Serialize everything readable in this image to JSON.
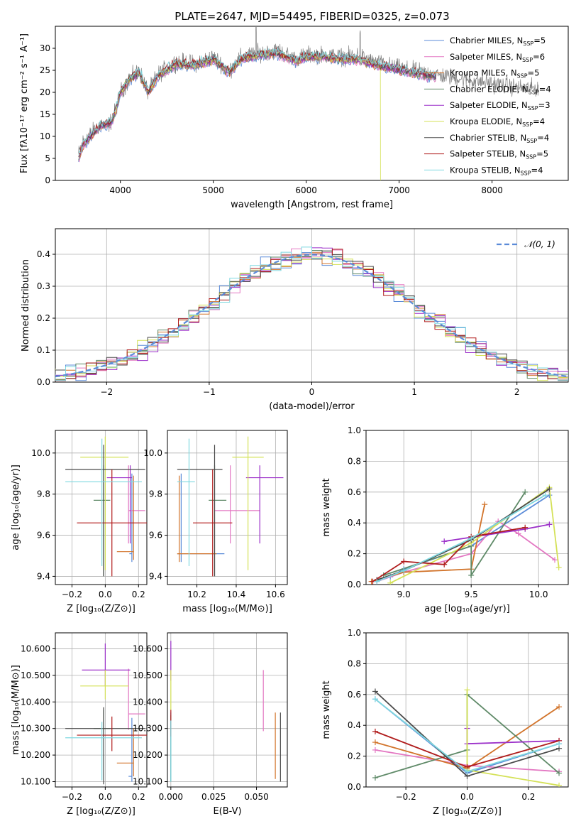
{
  "figure_title": "PLATE=2647, MJD=54495, FIBERID=0325, z=0.073",
  "models": [
    {
      "name": "Chabrier MILES, N$_{SSP}$=5",
      "label": "Chabrier MILES, N",
      "nssp": "=5",
      "color": "#5b8bd8"
    },
    {
      "name": "Salpeter MILES, N$_{SSP}$=6",
      "label": "Salpeter MILES, N",
      "nssp": "=6",
      "color": "#e377c2"
    },
    {
      "name": "Kroupa MILES, N$_{SSP}$=5",
      "label": "Kroupa MILES, N",
      "nssp": "=5",
      "color": "#d2742b"
    },
    {
      "name": "Chabrier ELODIE, N$_{SSP}$=4",
      "label": "Chabrier ELODIE, N",
      "nssp": "=4",
      "color": "#5f8a68"
    },
    {
      "name": "Salpeter ELODIE, N$_{SSP}$=3",
      "label": "Salpeter ELODIE, N",
      "nssp": "=3",
      "color": "#9b2fc9"
    },
    {
      "name": "Kroupa ELODIE, N$_{SSP}$=4",
      "label": "Kroupa ELODIE, N",
      "nssp": "=4",
      "color": "#d4e157"
    },
    {
      "name": "Chabrier STELIB, N$_{SSP}$=4",
      "label": "Chabrier STELIB, N",
      "nssp": "=4",
      "color": "#4a4a4a"
    },
    {
      "name": "Salpeter STELIB, N$_{SSP}$=5",
      "label": "Salpeter STELIB, N",
      "nssp": "=5",
      "color": "#b01c1c"
    },
    {
      "name": "Kroupa STELIB, N$_{SSP}$=4",
      "label": "Kroupa STELIB, N",
      "nssp": "=4",
      "color": "#7fd8e0"
    }
  ],
  "legend_subscript": "SSP",
  "chart_data": [
    {
      "id": "spectrum",
      "type": "line",
      "xlabel": "wavelength [Angstrom, rest frame]",
      "ylabel": "Flux [fλ10⁻¹⁷ erg cm⁻² s⁻¹ A⁻¹]",
      "xlim": [
        3300,
        8820
      ],
      "ylim": [
        0,
        35
      ],
      "xticks": [
        4000,
        5000,
        6000,
        7000,
        8000
      ],
      "yticks": [
        0,
        5,
        10,
        15,
        20,
        25,
        30
      ],
      "legend": "top-right",
      "data_color": "#808080",
      "data_anchors": [
        [
          3550,
          6
        ],
        [
          3600,
          9
        ],
        [
          3700,
          11
        ],
        [
          3800,
          13
        ],
        [
          3850,
          12
        ],
        [
          3900,
          13.5
        ],
        [
          3950,
          16
        ],
        [
          4000,
          20
        ],
        [
          4100,
          23
        ],
        [
          4200,
          25
        ],
        [
          4300,
          20
        ],
        [
          4400,
          24
        ],
        [
          4600,
          27
        ],
        [
          4800,
          26.5
        ],
        [
          5000,
          28
        ],
        [
          5175,
          25
        ],
        [
          5300,
          28
        ],
        [
          5500,
          29
        ],
        [
          5700,
          29.5
        ],
        [
          5890,
          27.5
        ],
        [
          6000,
          28.5
        ],
        [
          6200,
          28.5
        ],
        [
          6400,
          28
        ],
        [
          6563,
          28.5
        ],
        [
          6700,
          27
        ],
        [
          7000,
          25.5
        ],
        [
          7400,
          24
        ],
        [
          7700,
          23
        ],
        [
          8000,
          22
        ],
        [
          8300,
          21
        ],
        [
          8500,
          21
        ]
      ],
      "model_anchors": [
        [
          3550,
          5
        ],
        [
          3600,
          8
        ],
        [
          3700,
          10.5
        ],
        [
          3800,
          12.5
        ],
        [
          3900,
          13
        ],
        [
          3950,
          16
        ],
        [
          4000,
          20
        ],
        [
          4100,
          23
        ],
        [
          4200,
          24.5
        ],
        [
          4300,
          20
        ],
        [
          4400,
          23.5
        ],
        [
          4600,
          26.5
        ],
        [
          4800,
          26
        ],
        [
          5000,
          27.5
        ],
        [
          5175,
          24.5
        ],
        [
          5300,
          27.5
        ],
        [
          5500,
          28.5
        ],
        [
          5700,
          28.8
        ],
        [
          5890,
          27
        ],
        [
          6000,
          28
        ],
        [
          6200,
          28
        ],
        [
          6400,
          27.5
        ],
        [
          6563,
          27.5
        ],
        [
          6700,
          26.5
        ],
        [
          7000,
          25
        ],
        [
          7400,
          23.5
        ]
      ]
    },
    {
      "id": "residuals",
      "type": "step",
      "xlabel": "(data-model)/error",
      "ylabel": "Normed distribution",
      "xlim": [
        -2.5,
        2.5
      ],
      "ylim": [
        0,
        0.48
      ],
      "xticks": [
        -2,
        -1,
        0,
        1,
        2
      ],
      "yticks": [
        0.0,
        0.1,
        0.2,
        0.3,
        0.4
      ],
      "grid": true,
      "legend": "top-right",
      "reference_curve": "𝒩(0, 1)",
      "bin_width": 0.1
    },
    {
      "id": "age_vs_Z",
      "type": "errorbar",
      "xlabel": "Z [log₁₀(Z/Z⊙)]",
      "ylabel": "age  [log₁₀(age/yr)]",
      "xlim": [
        -0.3,
        0.25
      ],
      "ylim": [
        9.36,
        10.11
      ],
      "xticks": [
        -0.2,
        0.0,
        0.2
      ],
      "yticks": [
        9.4,
        9.6,
        9.8,
        10.0
      ],
      "grid": true,
      "points": [
        {
          "model": 0,
          "x": 0.16,
          "xerr": [
            0.015,
            0.0
          ],
          "y": 9.51,
          "yerr": [
            0.04,
            0.39
          ]
        },
        {
          "model": 1,
          "x": 0.14,
          "xerr": [
            0.0,
            0.1
          ],
          "y": 9.72,
          "yerr": [
            0.16,
            0.22
          ]
        },
        {
          "model": 2,
          "x": 0.17,
          "xerr": [
            0.1,
            0.0
          ],
          "y": 9.52,
          "yerr": [
            0.04,
            0.37
          ]
        },
        {
          "model": 3,
          "x": -0.01,
          "xerr": [
            0.06,
            0.04
          ],
          "y": 9.77,
          "yerr": [
            0.37,
            0.17
          ]
        },
        {
          "model": 4,
          "x": 0.15,
          "xerr": [
            0.14,
            0.01
          ],
          "y": 9.88,
          "yerr": [
            0.32,
            0.06
          ]
        },
        {
          "model": 5,
          "x": 0.0,
          "xerr": [
            0.15,
            0.14
          ],
          "y": 9.98,
          "yerr": [
            0.55,
            0.1
          ]
        },
        {
          "model": 6,
          "x": -0.01,
          "xerr": [
            0.23,
            0.25
          ],
          "y": 9.92,
          "yerr": [
            0.52,
            0.12
          ]
        },
        {
          "model": 7,
          "x": 0.04,
          "xerr": [
            0.21,
            0.23
          ],
          "y": 9.66,
          "yerr": [
            0.26,
            0.26
          ]
        },
        {
          "model": 8,
          "x": -0.02,
          "xerr": [
            0.22,
            0.24
          ],
          "y": 9.86,
          "yerr": [
            0.41,
            0.21
          ]
        }
      ]
    },
    {
      "id": "age_vs_mass",
      "type": "errorbar",
      "xlabel": "mass [log₁₀(M/M⊙)]",
      "ylabel": "",
      "xlim": [
        10.05,
        10.66
      ],
      "ylim": [
        9.36,
        10.11
      ],
      "xticks": [
        10.2,
        10.4,
        10.6
      ],
      "yticks": [
        9.4,
        9.6,
        9.8,
        10.0
      ],
      "grid": true,
      "points": [
        {
          "model": 0,
          "x": 10.12,
          "xerr": [
            0.02,
            0.22
          ],
          "y": 9.51,
          "yerr": [
            0.04,
            0.39
          ]
        },
        {
          "model": 1,
          "x": 10.37,
          "xerr": [
            0.08,
            0.15
          ],
          "y": 9.72,
          "yerr": [
            0.16,
            0.22
          ]
        },
        {
          "model": 2,
          "x": 10.11,
          "xerr": [
            0.01,
            0.19
          ],
          "y": 9.51,
          "yerr": [
            0.04,
            0.38
          ]
        },
        {
          "model": 3,
          "x": 10.29,
          "xerr": [
            0.03,
            0.06
          ],
          "y": 9.77,
          "yerr": [
            0.37,
            0.17
          ]
        },
        {
          "model": 4,
          "x": 10.52,
          "xerr": [
            0.07,
            0.12
          ],
          "y": 9.88,
          "yerr": [
            0.32,
            0.06
          ]
        },
        {
          "model": 5,
          "x": 10.46,
          "xerr": [
            0.08,
            0.08
          ],
          "y": 9.98,
          "yerr": [
            0.55,
            0.1
          ]
        },
        {
          "model": 6,
          "x": 10.29,
          "xerr": [
            0.19,
            0.04
          ],
          "y": 9.92,
          "yerr": [
            0.52,
            0.12
          ]
        },
        {
          "model": 7,
          "x": 10.28,
          "xerr": [
            0.1,
            0.1
          ],
          "y": 9.66,
          "yerr": [
            0.26,
            0.26
          ]
        },
        {
          "model": 8,
          "x": 10.16,
          "xerr": [
            0.06,
            0.03
          ],
          "y": 9.86,
          "yerr": [
            0.41,
            0.21
          ]
        }
      ]
    },
    {
      "id": "weight_vs_age",
      "type": "line",
      "xlabel": "age  [log₁₀(age/yr)]",
      "ylabel": "mass weight",
      "xlim": [
        8.72,
        10.22
      ],
      "ylim": [
        0,
        1
      ],
      "xticks": [
        9.0,
        9.5,
        10.0
      ],
      "yticks": [
        0.0,
        0.2,
        0.4,
        0.6,
        0.8,
        1.0
      ],
      "grid": true,
      "series": [
        {
          "model": 0,
          "x": [
            8.8,
            8.9,
            9.0,
            9.5,
            10.08
          ],
          "y": [
            0.02,
            0.05,
            0.1,
            0.25,
            0.58
          ]
        },
        {
          "model": 1,
          "x": [
            8.8,
            9.0,
            9.5,
            9.7,
            9.85,
            10.12
          ],
          "y": [
            0.02,
            0.08,
            0.2,
            0.41,
            0.33,
            0.16
          ]
        },
        {
          "model": 2,
          "x": [
            8.76,
            9.0,
            9.5,
            9.6
          ],
          "y": [
            0.02,
            0.08,
            0.1,
            0.52
          ]
        },
        {
          "model": 3,
          "x": [
            8.85,
            9.5,
            9.5,
            9.9
          ],
          "y": [
            0.06,
            0.25,
            0.06,
            0.6
          ]
        },
        {
          "model": 4,
          "x": [
            9.3,
            9.9,
            10.08
          ],
          "y": [
            0.28,
            0.36,
            0.39
          ]
        },
        {
          "model": 5,
          "x": [
            8.9,
            9.5,
            10.08,
            10.15
          ],
          "y": [
            0.01,
            0.27,
            0.63,
            0.11
          ]
        },
        {
          "model": 6,
          "x": [
            8.8,
            9.0,
            9.5,
            10.08
          ],
          "y": [
            0.03,
            0.09,
            0.29,
            0.62
          ]
        },
        {
          "model": 7,
          "x": [
            8.77,
            9.0,
            9.3,
            9.5,
            9.9
          ],
          "y": [
            0.02,
            0.15,
            0.13,
            0.31,
            0.37
          ]
        },
        {
          "model": 8,
          "x": [
            8.8,
            9.0,
            9.5,
            10.05
          ],
          "y": [
            0.02,
            0.09,
            0.3,
            0.58
          ]
        }
      ]
    },
    {
      "id": "mass_vs_Z",
      "type": "errorbar",
      "xlabel": "Z [log₁₀(Z/Z⊙)]",
      "ylabel": "mass [log₁₀(M/M⊙)]",
      "xlim": [
        -0.3,
        0.25
      ],
      "ylim": [
        10.08,
        10.66
      ],
      "xticks": [
        -0.2,
        0.0,
        0.2
      ],
      "yticks": [
        10.1,
        10.2,
        10.3,
        10.4,
        10.5,
        10.6
      ],
      "grid": true,
      "points": [
        {
          "model": 0,
          "x": 0.16,
          "xerr": [
            0.02,
            0.0
          ],
          "y": 10.12,
          "yerr": [
            0.02,
            0.22
          ]
        },
        {
          "model": 1,
          "x": 0.14,
          "xerr": [
            0.0,
            0.1
          ],
          "y": 10.355,
          "yerr": [
            0.06,
            0.17
          ]
        },
        {
          "model": 2,
          "x": 0.17,
          "xerr": [
            0.1,
            0.0
          ],
          "y": 10.17,
          "yerr": [
            0.05,
            0.13
          ]
        },
        {
          "model": 3,
          "x": -0.01,
          "xerr": [
            0.06,
            0.04
          ],
          "y": 10.3,
          "yerr": [
            0.04,
            0.07
          ]
        },
        {
          "model": 4,
          "x": 0.0,
          "xerr": [
            0.14,
            0.15
          ],
          "y": 10.52,
          "yerr": [
            0.06,
            0.1
          ]
        },
        {
          "model": 5,
          "x": 0.0,
          "xerr": [
            0.15,
            0.14
          ],
          "y": 10.46,
          "yerr": [
            0.05,
            0.06
          ]
        },
        {
          "model": 6,
          "x": -0.01,
          "xerr": [
            0.23,
            0.25
          ],
          "y": 10.3,
          "yerr": [
            0.21,
            0.08
          ]
        },
        {
          "model": 7,
          "x": 0.04,
          "xerr": [
            0.21,
            0.23
          ],
          "y": 10.275,
          "yerr": [
            0.06,
            0.07
          ]
        },
        {
          "model": 8,
          "x": -0.02,
          "xerr": [
            0.22,
            0.24
          ],
          "y": 10.265,
          "yerr": [
            0.16,
            0.06
          ]
        }
      ]
    },
    {
      "id": "mass_vs_ebv",
      "type": "errorbar",
      "xlabel": "E(B-V)",
      "ylabel": "",
      "xlim": [
        -0.002,
        0.068
      ],
      "ylim": [
        10.08,
        10.66
      ],
      "xticks": [
        0.0,
        0.025,
        0.05
      ],
      "xticklabels": [
        "0.000",
        "0.025",
        "0.050"
      ],
      "yticks": [
        10.1,
        10.2,
        10.3,
        10.4,
        10.5,
        10.6
      ],
      "grid": true,
      "points": [
        {
          "model": 0,
          "x": 0.0,
          "y": 10.22,
          "yerr": [
            0.12,
            0.14
          ]
        },
        {
          "model": 1,
          "x": 0.054,
          "y": 10.4,
          "yerr": [
            0.11,
            0.12
          ]
        },
        {
          "model": 2,
          "x": 0.061,
          "y": 10.23,
          "yerr": [
            0.12,
            0.13
          ]
        },
        {
          "model": 3,
          "x": 0.0,
          "y": 10.23,
          "yerr": [
            0.13,
            0.12
          ]
        },
        {
          "model": 4,
          "x": 0.0,
          "y": 10.55,
          "yerr": [
            0.07,
            0.08
          ]
        },
        {
          "model": 5,
          "x": 0.0,
          "y": 10.44,
          "yerr": [
            0.07,
            0.08
          ]
        },
        {
          "model": 6,
          "x": 0.064,
          "y": 10.23,
          "yerr": [
            0.13,
            0.13
          ]
        },
        {
          "model": 7,
          "x": 0.0,
          "y": 10.31,
          "yerr": [
            0.04,
            0.06
          ]
        },
        {
          "model": 8,
          "x": 0.0,
          "y": 10.2,
          "yerr": [
            0.1,
            0.13
          ]
        }
      ]
    },
    {
      "id": "weight_vs_Z",
      "type": "line",
      "xlabel": "Z [log₁₀(Z/Z⊙)]",
      "ylabel": "mass weight",
      "xlim": [
        -0.33,
        0.33
      ],
      "ylim": [
        0,
        1
      ],
      "xticks": [
        -0.2,
        0.0,
        0.2
      ],
      "yticks": [
        0.0,
        0.2,
        0.4,
        0.6,
        0.8,
        1.0
      ],
      "grid": true,
      "series": [
        {
          "model": 0,
          "x": [
            -0.3,
            0.0,
            0.3
          ],
          "y": [
            0.57,
            0.09,
            0.28
          ]
        },
        {
          "model": 1,
          "x": [
            -0.3,
            0.0,
            0.3
          ],
          "y": [
            0.24,
            0.14,
            0.1
          ]
        },
        {
          "model": 2,
          "x": [
            -0.3,
            0.0,
            0.3
          ],
          "y": [
            0.29,
            0.12,
            0.52
          ]
        },
        {
          "model": 3,
          "x": [
            -0.3,
            0.0,
            0.0,
            0.3
          ],
          "y": [
            0.06,
            0.24,
            0.6,
            0.09
          ]
        },
        {
          "model": 4,
          "x": [
            0.0,
            0.0,
            0.3
          ],
          "y": [
            0.38,
            0.28,
            0.3
          ]
        },
        {
          "model": 5,
          "x": [
            0.0,
            0.0,
            0.3
          ],
          "y": [
            0.63,
            0.11,
            0.01
          ]
        },
        {
          "model": 6,
          "x": [
            -0.3,
            0.0,
            0.3
          ],
          "y": [
            0.62,
            0.07,
            0.25
          ]
        },
        {
          "model": 7,
          "x": [
            -0.3,
            0.0,
            0.3
          ],
          "y": [
            0.36,
            0.13,
            0.3
          ]
        },
        {
          "model": 8,
          "x": [
            -0.3,
            0.0,
            0.3
          ],
          "y": [
            0.57,
            0.1,
            0.28
          ]
        }
      ]
    }
  ]
}
